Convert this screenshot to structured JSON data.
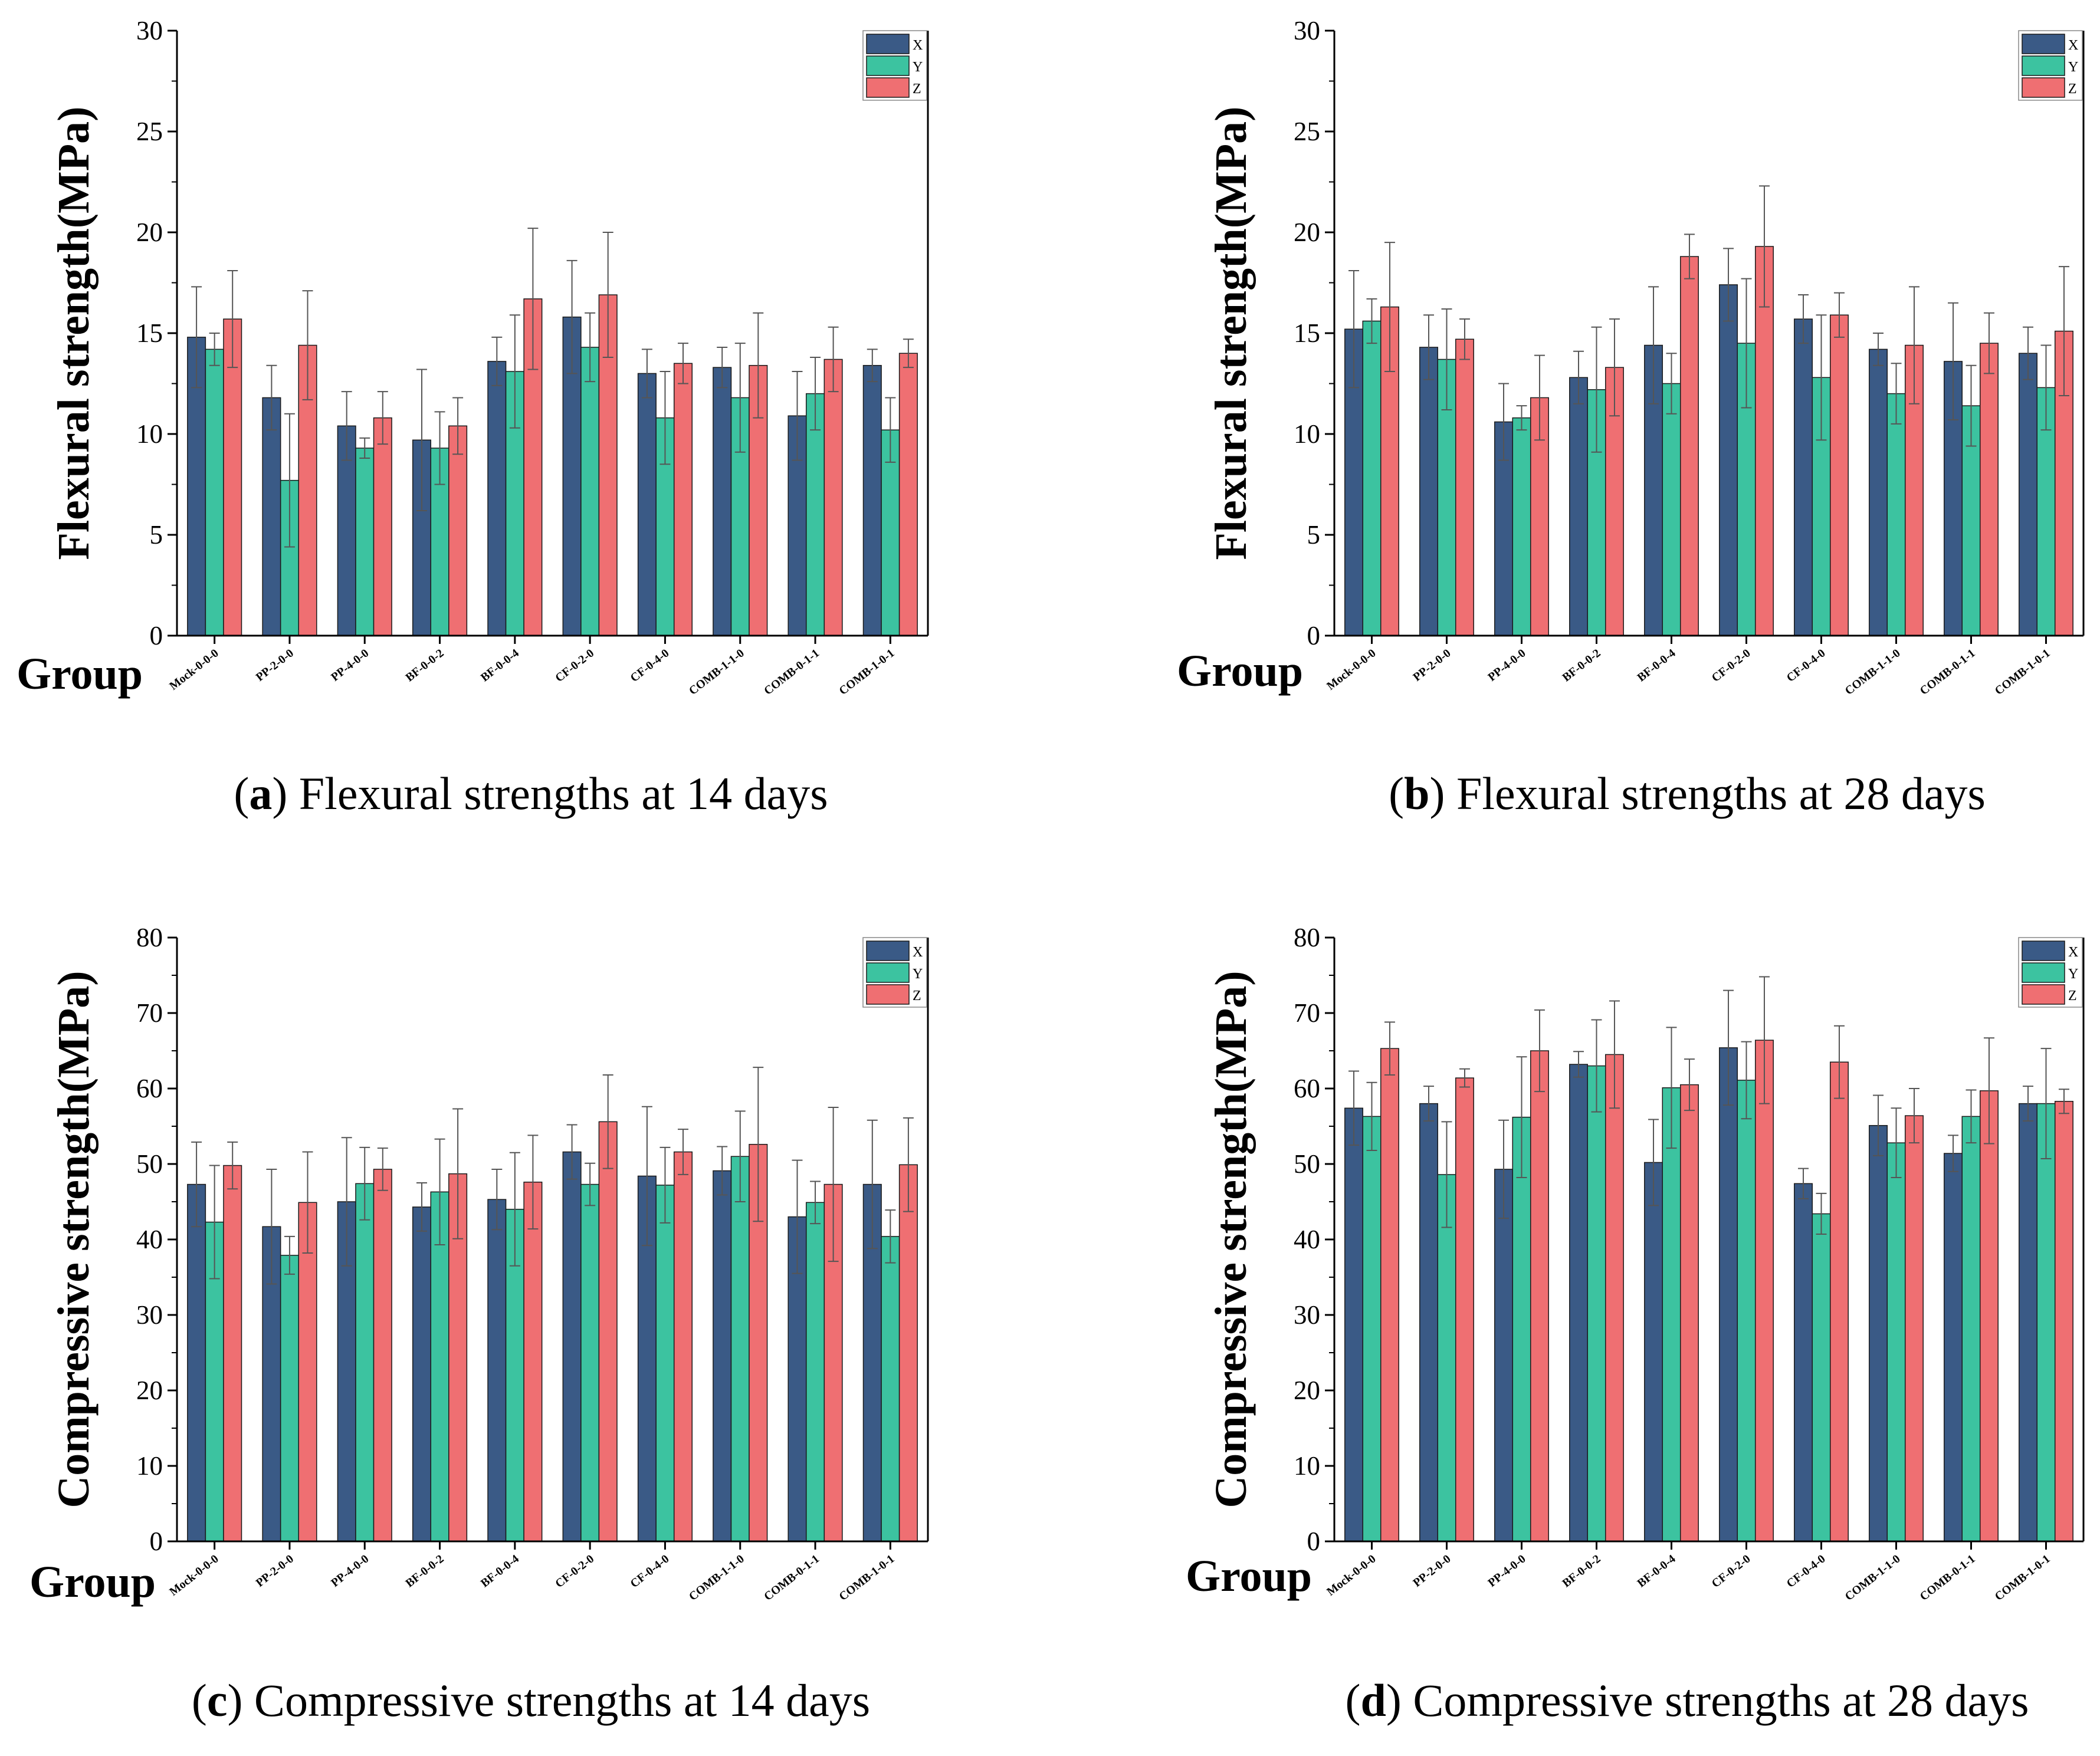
{
  "colors": {
    "X": "#3a5a86",
    "Y": "#3cc3a0",
    "Z": "#ef6f72",
    "axis": "#000000",
    "error": "#555555"
  },
  "chart_data": [
    {
      "type": "bar",
      "panel": "a",
      "caption_letter": "a",
      "caption_text": "Flexural strengths at 14 days",
      "ylabel": "Flexural strength(MPa)",
      "xlabel": "Group",
      "ylim": [
        0,
        30
      ],
      "yticks": [
        "0",
        "5",
        "10",
        "15",
        "20",
        "25",
        "30"
      ],
      "legend": "top-right",
      "categories": [
        "Mock-0-0-0",
        "PP-2-0-0",
        "PP-4-0-0",
        "BF-0-0-2",
        "BF-0-0-4",
        "CF-0-2-0",
        "CF-0-4-0",
        "COMB-1-1-0",
        "COMB-0-1-1",
        "COMB-1-0-1"
      ],
      "series": [
        {
          "name": "X",
          "values": [
            14.8,
            11.8,
            10.4,
            9.7,
            13.6,
            15.8,
            13.0,
            13.3,
            10.9,
            13.4
          ],
          "errors": [
            2.5,
            1.6,
            1.7,
            3.5,
            1.2,
            2.8,
            1.2,
            1.0,
            2.2,
            0.8
          ]
        },
        {
          "name": "Y",
          "values": [
            14.2,
            7.7,
            9.3,
            9.3,
            13.1,
            14.3,
            10.8,
            11.8,
            12.0,
            10.2
          ],
          "errors": [
            0.8,
            3.3,
            0.5,
            1.8,
            2.8,
            1.7,
            2.3,
            2.7,
            1.8,
            1.6
          ]
        },
        {
          "name": "Z",
          "values": [
            15.7,
            14.4,
            10.8,
            10.4,
            16.7,
            16.9,
            13.5,
            13.4,
            13.7,
            14.0
          ],
          "errors": [
            2.4,
            2.7,
            1.3,
            1.4,
            3.5,
            3.1,
            1.0,
            2.6,
            1.6,
            0.7
          ]
        }
      ]
    },
    {
      "type": "bar",
      "panel": "b",
      "caption_letter": "b",
      "caption_text": "Flexural strengths at 28 days",
      "ylabel": "Flexural strength(MPa)",
      "xlabel": "Group",
      "ylim": [
        0,
        30
      ],
      "yticks": [
        "0",
        "5",
        "10",
        "15",
        "20",
        "25",
        "30"
      ],
      "legend": "top-right",
      "categories": [
        "Mock-0-0-0",
        "PP-2-0-0",
        "PP-4-0-0",
        "BF-0-0-2",
        "BF-0-0-4",
        "CF-0-2-0",
        "CF-0-4-0",
        "COMB-1-1-0",
        "COMB-0-1-1",
        "COMB-1-0-1"
      ],
      "series": [
        {
          "name": "X",
          "values": [
            15.2,
            14.3,
            10.6,
            12.8,
            14.4,
            17.4,
            15.7,
            14.2,
            13.6,
            14.0
          ],
          "errors": [
            2.9,
            1.6,
            1.9,
            1.3,
            2.9,
            1.8,
            1.2,
            0.8,
            2.9,
            1.3
          ]
        },
        {
          "name": "Y",
          "values": [
            15.6,
            13.7,
            10.8,
            12.2,
            12.5,
            14.5,
            12.8,
            12.0,
            11.4,
            12.3
          ],
          "errors": [
            1.1,
            2.5,
            0.6,
            3.1,
            1.5,
            3.2,
            3.1,
            1.5,
            2.0,
            2.1
          ]
        },
        {
          "name": "Z",
          "values": [
            16.3,
            14.7,
            11.8,
            13.3,
            18.8,
            19.3,
            15.9,
            14.4,
            14.5,
            15.1
          ],
          "errors": [
            3.2,
            1.0,
            2.1,
            2.4,
            1.1,
            3.0,
            1.1,
            2.9,
            1.5,
            3.2
          ]
        }
      ]
    },
    {
      "type": "bar",
      "panel": "c",
      "caption_letter": "c",
      "caption_text": "Compressive strengths at 14 days",
      "ylabel": "Compressive strength(MPa)",
      "xlabel": "Group",
      "ylim": [
        0,
        80
      ],
      "yticks": [
        "0",
        "10",
        "20",
        "30",
        "40",
        "50",
        "60",
        "70",
        "80"
      ],
      "legend": "top-right",
      "categories": [
        "Mock-0-0-0",
        "PP-2-0-0",
        "PP-4-0-0",
        "BF-0-0-2",
        "BF-0-0-4",
        "CF-0-2-0",
        "CF-0-4-0",
        "COMB-1-1-0",
        "COMB-0-1-1",
        "COMB-1-0-1"
      ],
      "series": [
        {
          "name": "X",
          "values": [
            47.3,
            41.7,
            45.0,
            44.3,
            45.3,
            51.6,
            48.4,
            49.1,
            43.0,
            47.3
          ],
          "errors": [
            5.6,
            7.6,
            8.5,
            3.2,
            4.0,
            3.6,
            9.2,
            3.2,
            7.5,
            8.5
          ]
        },
        {
          "name": "Y",
          "values": [
            42.3,
            37.9,
            47.4,
            46.3,
            44.0,
            47.3,
            47.2,
            51.0,
            44.9,
            40.4
          ],
          "errors": [
            7.5,
            2.5,
            4.8,
            7.0,
            7.5,
            2.8,
            5.0,
            6.0,
            2.8,
            3.5
          ]
        },
        {
          "name": "Z",
          "values": [
            49.8,
            44.9,
            49.3,
            48.7,
            47.6,
            55.6,
            51.6,
            52.6,
            47.3,
            49.9
          ],
          "errors": [
            3.1,
            6.7,
            2.8,
            8.6,
            6.2,
            6.2,
            3.0,
            10.2,
            10.2,
            6.2
          ]
        }
      ]
    },
    {
      "type": "bar",
      "panel": "d",
      "caption_letter": "d",
      "caption_text": "Compressive strengths at 28 days",
      "ylabel": "Compressive strength(MPa)",
      "xlabel": "Group",
      "ylim": [
        0,
        80
      ],
      "yticks": [
        "0",
        "10",
        "20",
        "30",
        "40",
        "50",
        "60",
        "70",
        "80"
      ],
      "legend": "top-right",
      "categories": [
        "Mock-0-0-0",
        "PP-2-0-0",
        "PP-4-0-0",
        "BF-0-0-2",
        "BF-0-0-4",
        "CF-0-2-0",
        "CF-0-4-0",
        "COMB-1-1-0",
        "COMB-0-1-1",
        "COMB-1-0-1"
      ],
      "series": [
        {
          "name": "X",
          "values": [
            57.4,
            58.0,
            49.3,
            63.2,
            50.2,
            65.4,
            47.4,
            55.1,
            51.4,
            58.0
          ],
          "errors": [
            4.9,
            2.3,
            6.5,
            1.7,
            5.7,
            7.6,
            2.0,
            4.0,
            2.4,
            2.3
          ]
        },
        {
          "name": "Y",
          "values": [
            56.3,
            48.6,
            56.2,
            63.0,
            60.1,
            61.1,
            43.4,
            52.8,
            56.3,
            58.0
          ],
          "errors": [
            4.5,
            7.0,
            8.0,
            6.1,
            8.0,
            5.1,
            2.7,
            4.6,
            3.5,
            7.3
          ]
        },
        {
          "name": "Z",
          "values": [
            65.3,
            61.4,
            65.0,
            64.5,
            60.5,
            66.4,
            63.5,
            56.4,
            59.7,
            58.3
          ],
          "errors": [
            3.5,
            1.2,
            5.4,
            7.1,
            3.4,
            8.4,
            4.8,
            3.6,
            7.0,
            1.6
          ]
        }
      ]
    }
  ]
}
